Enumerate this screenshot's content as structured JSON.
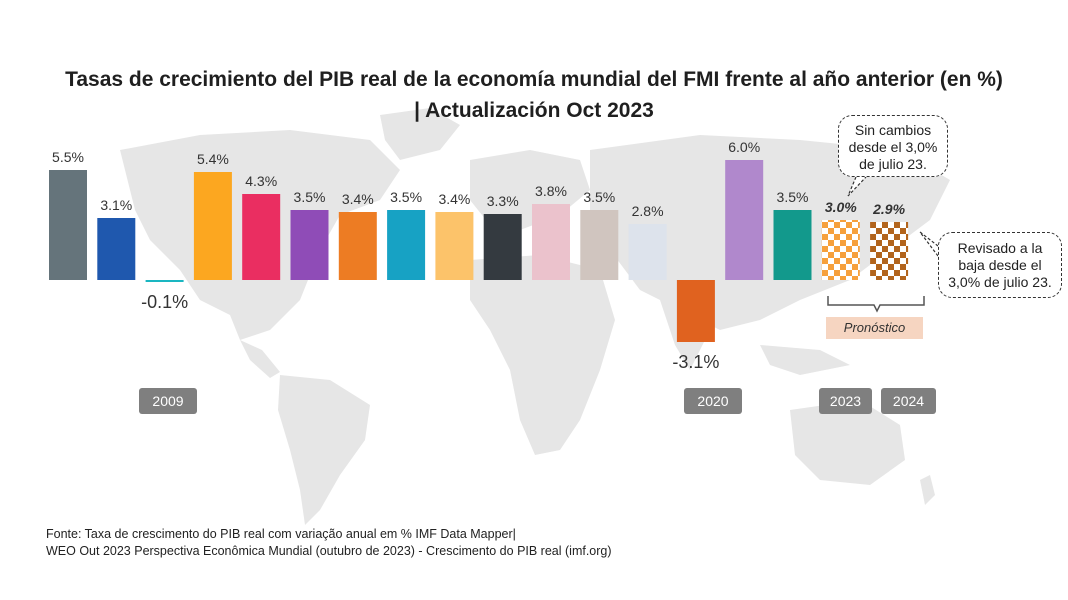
{
  "title": {
    "line1": "Tasas de crecimiento del PIB real de la economía mundial del FMI frente al año anterior (en %)",
    "line2": "| Actualización Oct 2023"
  },
  "chart_data": {
    "type": "bar",
    "values": [
      5.5,
      3.1,
      -0.1,
      5.4,
      4.3,
      3.5,
      3.4,
      3.5,
      3.4,
      3.3,
      3.8,
      3.5,
      2.8,
      -3.1,
      6.0,
      3.5,
      3.0,
      2.9
    ],
    "labels": [
      "5.5%",
      "3.1%",
      "-0.1%",
      "5.4%",
      "4.3%",
      "3.5%",
      "3.4%",
      "3.5%",
      "3.4%",
      "3.3%",
      "3.8%",
      "3.5%",
      "2.8%",
      "-3.1%",
      "6.0%",
      "3.5%",
      "3.0%",
      "2.9%"
    ],
    "colors": [
      "#65747b",
      "#1f58ae",
      "#1ab6c1",
      "#fca720",
      "#ea2e61",
      "#8f4cb7",
      "#ed7c23",
      "#17a2c4",
      "#fcc36a",
      "#343a40",
      "#ebc2cc",
      "#d0c5bf",
      "#dde3ec",
      "#e0621f",
      "#b088cc",
      "#12998c",
      "#f6a03c",
      "#b2641c"
    ],
    "forecast_indices": [
      16,
      17
    ],
    "zero_baseline": true
  },
  "year_badges": [
    {
      "label": "2009",
      "index": 2
    },
    {
      "label": "2020",
      "index": 13
    },
    {
      "label": "2023",
      "index": 16
    },
    {
      "label": "2024",
      "index": 17
    }
  ],
  "forecast_label": "Pronóstico",
  "callout_top": {
    "line1": "Sin cambios",
    "line2": "desde el 3,0%",
    "line3": "de julio 23."
  },
  "callout_right": {
    "line1": "Revisado a la",
    "line2": "baja desde el",
    "line3": "3,0% de julio 23."
  },
  "source": {
    "line1": "Fonte: Taxa de crescimento do PIB real com variação anual em % IMF Data Mapper|",
    "line2": "WEO Out 2023 Perspectiva Econômica Mundial (outubro de 2023) - Crescimento do PIB real (imf.org)"
  }
}
